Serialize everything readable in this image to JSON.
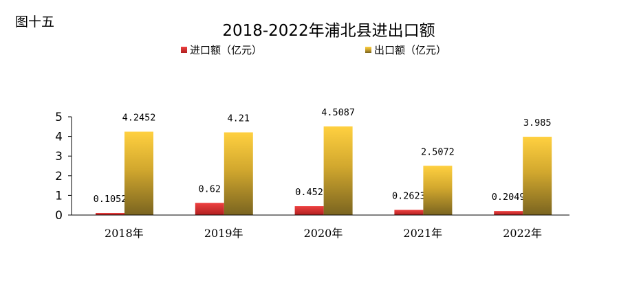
{
  "figure_label": "图十五",
  "chart_data": {
    "type": "bar",
    "title": "2018-2022年浦北县进出口额",
    "categories": [
      "2018年",
      "2019年",
      "2020年",
      "2021年",
      "2022年"
    ],
    "series": [
      {
        "name": "进口额（亿元）",
        "values": [
          0.1052,
          0.62,
          0.452,
          0.2623,
          0.2049
        ],
        "labels": [
          "0.1052",
          "0.62",
          "0.452",
          "0.2623",
          "0.2049"
        ],
        "color": "#e03030"
      },
      {
        "name": "出口额（亿元）",
        "values": [
          4.2452,
          4.21,
          4.5087,
          2.5072,
          3.985
        ],
        "labels": [
          "4.2452",
          "4.21",
          "4.5087",
          "2.5072",
          "3.985"
        ],
        "color": "#f5c33a"
      }
    ],
    "ylim": [
      0,
      5
    ],
    "yticks": [
      0,
      1,
      2,
      3,
      4,
      5
    ],
    "legend_position": "top",
    "grid": false
  }
}
